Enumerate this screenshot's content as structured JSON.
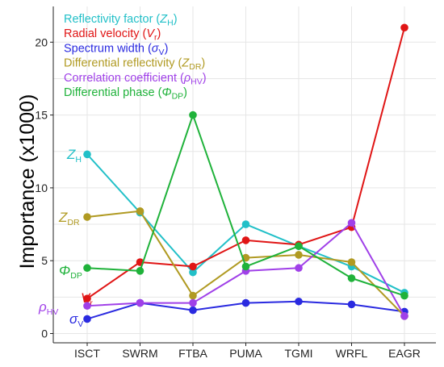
{
  "chart_data": {
    "type": "line",
    "title": "",
    "xlabel": "",
    "ylabel": "Importance (x1000)",
    "ylim": [
      -0.5,
      21.8
    ],
    "yticks": [
      0,
      5,
      10,
      15,
      20
    ],
    "grid": true,
    "legend_position": "top-left",
    "categories": [
      "ISCT",
      "SWRM",
      "FTBA",
      "PUMA",
      "TGMI",
      "WRFL",
      "EAGR"
    ],
    "series": [
      {
        "name": "Reflectivity factor (ZH)",
        "legend_main": "Reflectivity factor (",
        "legend_symbol": "Z",
        "legend_sub": "H",
        "legend_close": ")",
        "label_main": "Z",
        "label_sub": "H",
        "color": "#22c0c8",
        "values": [
          12.3,
          8.3,
          4.2,
          7.5,
          6.0,
          4.6,
          2.8
        ]
      },
      {
        "name": "Radial velocity (Vr)",
        "legend_main": "Radial velocity (",
        "legend_symbol": "V",
        "legend_sub": "r",
        "legend_close": ")",
        "label_main": "V",
        "label_sub": "r",
        "color": "#e01515",
        "values": [
          2.4,
          4.9,
          4.6,
          6.4,
          6.1,
          7.3,
          21.0
        ]
      },
      {
        "name": "Spectrum width (σV)",
        "legend_main": "Spectrum width (",
        "legend_symbol": "σ",
        "legend_sub": "V",
        "legend_close": ")",
        "label_main": "σ",
        "label_sub": "V",
        "color": "#2a2ae0",
        "values": [
          1.0,
          2.1,
          1.6,
          2.1,
          2.2,
          2.0,
          1.5
        ]
      },
      {
        "name": "Differential reflectivity (ZDR)",
        "legend_main": "Differential reflectivity (",
        "legend_symbol": "Z",
        "legend_sub": "DR",
        "legend_close": ")",
        "label_main": "Z",
        "label_sub": "DR",
        "color": "#b09a22",
        "values": [
          8.0,
          8.4,
          2.6,
          5.2,
          5.4,
          4.9,
          1.2
        ]
      },
      {
        "name": "Correlation coefficient (ρHV)",
        "legend_main": "Correlation coefficient (",
        "legend_symbol": "ρ",
        "legend_sub": "HV",
        "legend_close": ")",
        "label_main": "ρ",
        "label_sub": "HV",
        "color": "#a040e8",
        "values": [
          1.9,
          2.1,
          2.1,
          4.3,
          4.5,
          7.6,
          1.2
        ]
      },
      {
        "name": "Differential phase (ΦDP)",
        "legend_main": "Differential phase (",
        "legend_symbol": "Φ",
        "legend_sub": "DP",
        "legend_close": ")",
        "label_main": "Φ",
        "label_sub": "DP",
        "color": "#1fb23a",
        "values": [
          4.5,
          4.3,
          15.0,
          4.6,
          6.0,
          3.8,
          2.6
        ]
      }
    ]
  }
}
